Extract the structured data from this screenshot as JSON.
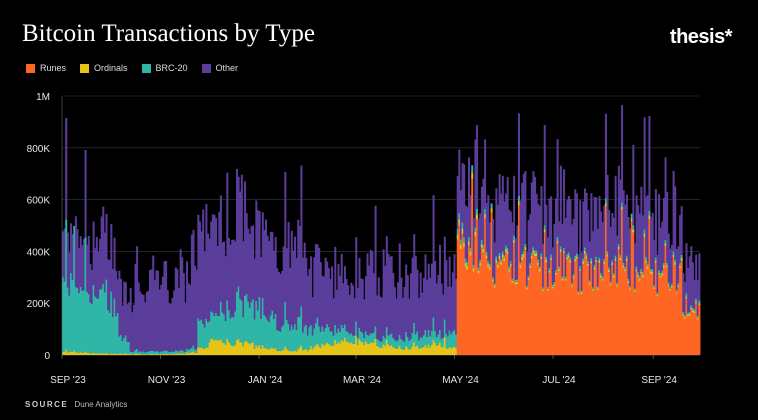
{
  "chart_data": {
    "type": "bar",
    "stacked": true,
    "title": "Bitcoin Transactions by Type",
    "brand": "thesis*",
    "source_label": "SOURCE",
    "source": "Dune Analytics",
    "ylim": [
      0,
      1000000
    ],
    "yticks": [
      0,
      200000,
      400000,
      600000,
      800000,
      1000000
    ],
    "ytick_labels": [
      "0",
      "200K",
      "400K",
      "600K",
      "800K",
      "1M"
    ],
    "xtick_labels": [
      "SEP '23",
      "NOV '23",
      "JAN '24",
      "MAR '24",
      "MAY '24",
      "JUL '24",
      "SEP '24"
    ],
    "x_start": "2023-09-01",
    "x_end": "2024-09-30",
    "xtick_dates": [
      "2023-09-01",
      "2023-11-01",
      "2024-01-01",
      "2024-03-01",
      "2024-05-01",
      "2024-07-01",
      "2024-09-01"
    ],
    "series": [
      {
        "name": "Runes",
        "color": "#ff6624",
        "weekly_avg": [
          0,
          0,
          0,
          0,
          0,
          0,
          0,
          0,
          0,
          0,
          0,
          0,
          0,
          0,
          0,
          0,
          0,
          0,
          0,
          0,
          0,
          0,
          0,
          0,
          0,
          0,
          0,
          0,
          0,
          0,
          0,
          0,
          0,
          0,
          0,
          420000,
          380000,
          340000,
          300000,
          320000,
          360000,
          330000,
          310000,
          300000,
          330000,
          310000,
          300000,
          290000,
          320000,
          330000,
          300000,
          280000,
          300000,
          320000,
          310000,
          180000,
          180000
        ]
      },
      {
        "name": "Ordinals",
        "color": "#e6c41a",
        "weekly_avg": [
          12000,
          10000,
          8000,
          6000,
          5000,
          5000,
          4000,
          3000,
          3000,
          4000,
          6000,
          10000,
          25000,
          60000,
          50000,
          40000,
          45000,
          30000,
          25000,
          20000,
          15000,
          20000,
          30000,
          40000,
          50000,
          55000,
          50000,
          40000,
          35000,
          30000,
          25000,
          30000,
          35000,
          40000,
          30000,
          20000,
          15000,
          12000,
          10000,
          10000,
          12000,
          10000,
          9000,
          8000,
          8000,
          8000,
          8000,
          8000,
          8000,
          8000,
          8000,
          8000,
          8000,
          8000,
          8000,
          8000,
          8000
        ]
      },
      {
        "name": "BRC-20",
        "color": "#2fb6a6",
        "weekly_avg": [
          280000,
          260000,
          240000,
          220000,
          180000,
          60000,
          10000,
          10000,
          10000,
          10000,
          10000,
          15000,
          90000,
          100000,
          120000,
          130000,
          150000,
          140000,
          120000,
          100000,
          90000,
          80000,
          70000,
          60000,
          50000,
          40000,
          35000,
          30000,
          30000,
          35000,
          40000,
          45000,
          50000,
          40000,
          60000,
          20000,
          15000,
          12000,
          10000,
          10000,
          12000,
          10000,
          10000,
          10000,
          10000,
          10000,
          10000,
          10000,
          10000,
          10000,
          10000,
          10000,
          10000,
          10000,
          10000,
          10000,
          10000
        ]
      },
      {
        "name": "Other",
        "color": "#5b3d9b",
        "weekly_avg": [
          200000,
          220000,
          200000,
          200000,
          180000,
          200000,
          230000,
          230000,
          240000,
          250000,
          300000,
          320000,
          330000,
          340000,
          330000,
          320000,
          320000,
          300000,
          300000,
          290000,
          270000,
          260000,
          240000,
          220000,
          200000,
          210000,
          220000,
          230000,
          240000,
          230000,
          220000,
          220000,
          220000,
          230000,
          250000,
          220000,
          220000,
          200000,
          200000,
          200000,
          220000,
          210000,
          210000,
          210000,
          220000,
          210000,
          200000,
          200000,
          210000,
          220000,
          230000,
          220000,
          220000,
          210000,
          200000,
          200000,
          150000
        ]
      }
    ]
  }
}
